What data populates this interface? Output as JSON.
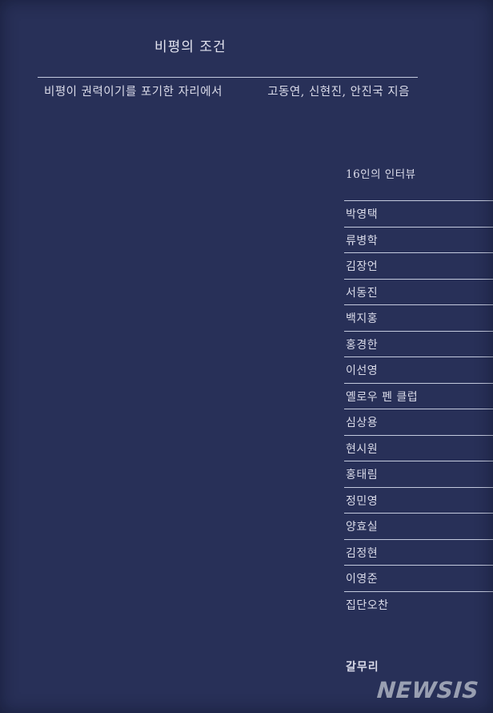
{
  "cover": {
    "title": "비평의 조건",
    "subtitle": "비평이 권력이기를 포기한 자리에서",
    "authors": "고동연, 신현진, 안진국 지음",
    "section_label": "16인의 인터뷰",
    "interviewees": [
      "박영택",
      "류병학",
      "김장언",
      "서동진",
      "백지홍",
      "홍경한",
      "이선영",
      "옐로우 펜 클럽",
      "심상용",
      "현시원",
      "홍태림",
      "정민영",
      "양효실",
      "김정현",
      "이영준",
      "집단오찬"
    ],
    "publisher": "갈무리"
  },
  "watermark": {
    "label": "NEWSIS"
  },
  "colors": {
    "background": "#283058",
    "ink": "#dadbe9",
    "ink-bright": "#e2e3ef",
    "line": "#c4cade",
    "watermark": "#9aa0b2"
  }
}
